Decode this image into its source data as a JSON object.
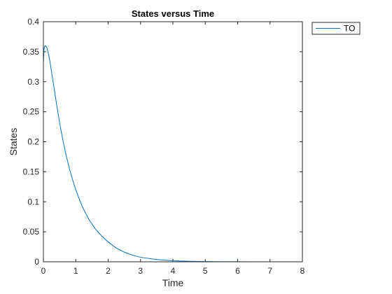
{
  "chart_data": {
    "type": "line",
    "title": "States versus Time",
    "xlabel": "Time",
    "ylabel": "States",
    "xlim": [
      0,
      8
    ],
    "ylim": [
      0,
      0.4
    ],
    "xticks": [
      0,
      1,
      2,
      3,
      4,
      5,
      6,
      7,
      8
    ],
    "yticks": [
      0,
      0.05,
      0.1,
      0.15,
      0.2,
      0.25,
      0.3,
      0.35,
      0.4
    ],
    "ytick_labels": [
      "0",
      "0.05",
      "0.1",
      "0.15",
      "0.2",
      "0.25",
      "0.3",
      "0.35",
      "0.4"
    ],
    "grid": false,
    "legend_position": "top-right",
    "series": [
      {
        "name": "TO",
        "color": "#0072BD",
        "x": [
          0,
          0.02,
          0.05,
          0.1,
          0.15,
          0.2,
          0.3,
          0.4,
          0.5,
          0.6,
          0.7,
          0.8,
          0.9,
          1.0,
          1.2,
          1.4,
          1.6,
          1.8,
          2.0,
          2.25,
          2.5,
          2.75,
          3.0,
          3.5,
          4.0,
          4.5,
          5.0,
          5.5,
          6.0,
          6.5,
          7.0,
          7.5,
          8.0
        ],
        "y": [
          0.333,
          0.355,
          0.36,
          0.358,
          0.348,
          0.334,
          0.3,
          0.265,
          0.232,
          0.203,
          0.178,
          0.156,
          0.137,
          0.12,
          0.092,
          0.071,
          0.055,
          0.043,
          0.033,
          0.023,
          0.016,
          0.011,
          0.0075,
          0.0038,
          0.0018,
          0.0009,
          0.0004,
          0.0002,
          0.0001,
          5e-05,
          2e-05,
          1e-05,
          0.0
        ]
      }
    ]
  }
}
